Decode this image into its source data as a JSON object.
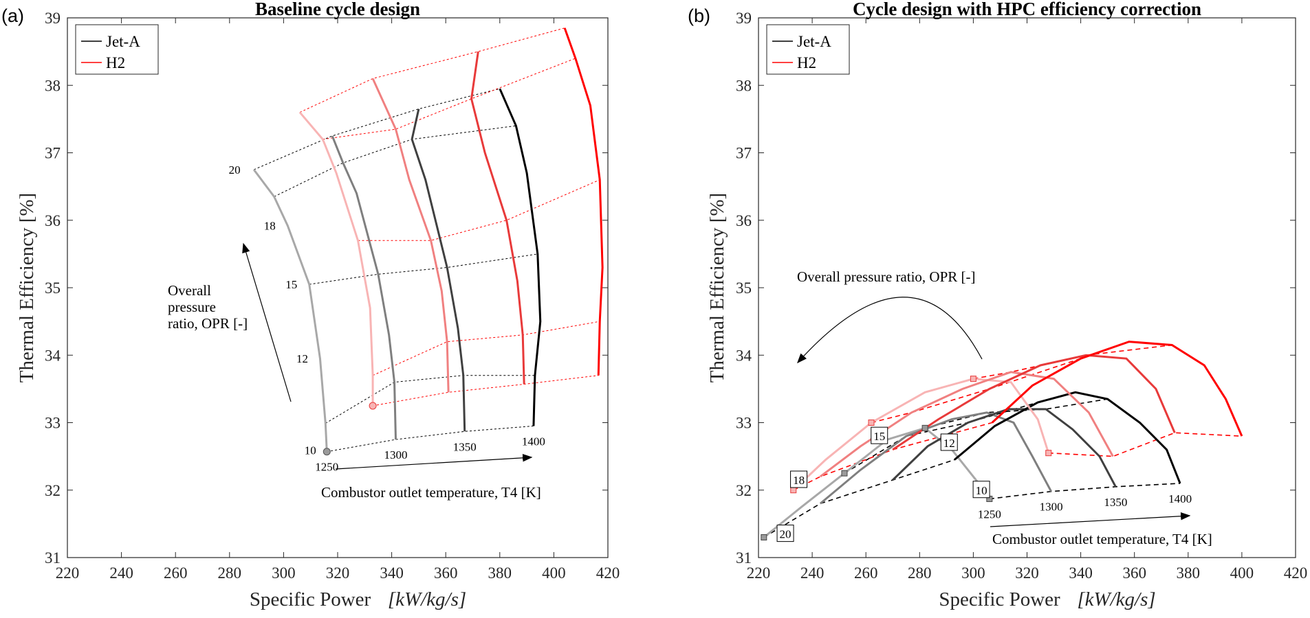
{
  "chart_data": [
    {
      "type": "line",
      "panel_label": "(a)",
      "title": "Baseline cycle design",
      "xlabel": "Specific Power",
      "xlabel_unit": "kW/kg/s",
      "ylabel": "Thermal Efficiency [%]",
      "xlim": [
        220,
        420
      ],
      "ylim": [
        31,
        39
      ],
      "xticks": [
        "220",
        "240",
        "260",
        "280",
        "300",
        "320",
        "340",
        "360",
        "380",
        "400",
        "420"
      ],
      "yticks": [
        "31",
        "32",
        "33",
        "34",
        "35",
        "36",
        "37",
        "38",
        "39"
      ],
      "legend": {
        "position": "top-left",
        "entries": [
          {
            "name": "Jet-A",
            "color": "#000000"
          },
          {
            "name": "H2",
            "color": "#ff0000"
          }
        ]
      },
      "opr_labels": [
        "10",
        "12",
        "15",
        "18",
        "20"
      ],
      "t4_labels": [
        "1250",
        "1300",
        "1350",
        "1400"
      ],
      "annotations": {
        "opr_arrow_text": [
          "Overall",
          "pressure",
          "ratio, OPR [-]"
        ],
        "t4_arrow_text": "Combustor outlet temperature, T4 [K]"
      },
      "series": [
        {
          "name": "Jet-A",
          "fuel": "Jet-A",
          "T4": 1250,
          "color": "#a8a8a8",
          "x": [
            316,
            315.5,
            313.5,
            309.5,
            301.5,
            296.5,
            289
          ],
          "y": [
            32.57,
            32.99,
            33.95,
            35.05,
            35.92,
            36.35,
            36.75
          ]
        },
        {
          "name": "Jet-A",
          "fuel": "Jet-A",
          "T4": 1300,
          "color": "#7f7f7f",
          "x": [
            341.5,
            341,
            339,
            335,
            327,
            322,
            318
          ],
          "y": [
            32.75,
            33.6,
            34.3,
            35.2,
            36.4,
            36.85,
            37.25
          ]
        },
        {
          "name": "Jet-A",
          "fuel": "Jet-A",
          "T4": 1350,
          "color": "#404040",
          "x": [
            367,
            366.5,
            364.5,
            360.5,
            352.5,
            347.5,
            350
          ],
          "y": [
            32.87,
            33.7,
            34.4,
            35.3,
            36.6,
            37.2,
            37.65
          ]
        },
        {
          "name": "Jet-A",
          "fuel": "Jet-A",
          "T4": 1400,
          "color": "#000000",
          "x": [
            392.5,
            393,
            395,
            394,
            390,
            386,
            380
          ],
          "y": [
            32.95,
            33.7,
            34.5,
            35.5,
            36.7,
            37.4,
            37.95
          ]
        },
        {
          "name": "H2",
          "fuel": "H2",
          "T4": 1250,
          "color": "#f8b4b4",
          "x": [
            333,
            333,
            332,
            327.5,
            319.5,
            314.5,
            306
          ],
          "y": [
            33.25,
            33.7,
            34.7,
            35.7,
            36.7,
            37.2,
            37.6
          ]
        },
        {
          "name": "H2",
          "fuel": "H2",
          "T4": 1300,
          "color": "#f08080",
          "x": [
            361,
            360.5,
            358.5,
            354.5,
            346.5,
            341.5,
            333
          ],
          "y": [
            33.45,
            34.2,
            34.95,
            35.7,
            36.6,
            37.35,
            38.1
          ]
        },
        {
          "name": "H2",
          "fuel": "H2",
          "T4": 1350,
          "color": "#e83a3a",
          "x": [
            389,
            388.5,
            386.5,
            382.5,
            374.5,
            369.5,
            372
          ],
          "y": [
            33.57,
            34.3,
            35.1,
            36.0,
            37.0,
            37.8,
            38.5
          ]
        },
        {
          "name": "H2",
          "fuel": "H2",
          "T4": 1400,
          "color": "#ff0000",
          "x": [
            416.5,
            417,
            418,
            417,
            413.5,
            408,
            404
          ],
          "y": [
            33.7,
            34.5,
            35.3,
            36.6,
            37.7,
            38.4,
            38.85
          ]
        }
      ]
    },
    {
      "type": "line",
      "panel_label": "(b)",
      "title": "Cycle design with HPC efficiency correction",
      "xlabel": "Specific Power",
      "xlabel_unit": "kW/kg/s",
      "ylabel": "Thermal Efficiency [%]",
      "xlim": [
        220,
        420
      ],
      "ylim": [
        31,
        39
      ],
      "xticks": [
        "220",
        "240",
        "260",
        "280",
        "300",
        "320",
        "340",
        "360",
        "380",
        "400",
        "420"
      ],
      "yticks": [
        "31",
        "32",
        "33",
        "34",
        "35",
        "36",
        "37",
        "38",
        "39"
      ],
      "legend": {
        "position": "top-left",
        "entries": [
          {
            "name": "Jet-A",
            "color": "#000000"
          },
          {
            "name": "H2",
            "color": "#ff0000"
          }
        ]
      },
      "opr_labels": [
        "10",
        "12",
        "15",
        "18",
        "20"
      ],
      "t4_labels": [
        "1250",
        "1300",
        "1350",
        "1400"
      ],
      "annotations": {
        "opr_arrow_text": "Overall pressure ratio, OPR [-]",
        "t4_arrow_text": "Combustor outlet temperature, T4 [K]"
      },
      "series": [
        {
          "name": "Jet-A",
          "fuel": "Jet-A",
          "T4": 1250,
          "color": "#a8a8a8",
          "x": [
            222,
            236,
            252,
            268,
            282,
            292,
            302,
            306
          ],
          "y": [
            31.3,
            31.75,
            32.25,
            32.75,
            32.92,
            32.6,
            32.1,
            31.87
          ]
        },
        {
          "name": "Jet-A",
          "fuel": "Jet-A",
          "T4": 1300,
          "color": "#7f7f7f",
          "x": [
            243,
            258,
            275,
            292,
            305,
            315,
            322,
            329
          ],
          "y": [
            31.8,
            32.3,
            32.8,
            33.05,
            33.15,
            33.0,
            32.5,
            31.98
          ]
        },
        {
          "name": "Jet-A",
          "fuel": "Jet-A",
          "T4": 1350,
          "color": "#404040",
          "x": [
            270,
            283,
            298,
            313,
            327,
            337,
            347,
            353
          ],
          "y": [
            32.15,
            32.65,
            33.0,
            33.2,
            33.2,
            32.9,
            32.5,
            32.05
          ]
        },
        {
          "name": "Jet-A",
          "fuel": "Jet-A",
          "T4": 1400,
          "color": "#000000",
          "x": [
            293,
            308,
            324,
            338,
            350,
            362,
            372,
            377
          ],
          "y": [
            32.45,
            32.95,
            33.3,
            33.45,
            33.35,
            33.0,
            32.6,
            32.1
          ]
        },
        {
          "name": "H2",
          "fuel": "H2",
          "T4": 1250,
          "color": "#f8b4b4",
          "x": [
            233,
            245,
            262,
            282,
            300,
            314,
            324,
            328
          ],
          "y": [
            32.0,
            32.45,
            33.0,
            33.45,
            33.65,
            33.6,
            33.05,
            32.55
          ]
        },
        {
          "name": "H2",
          "fuel": "H2",
          "T4": 1300,
          "color": "#f08080",
          "x": [
            243,
            258,
            277,
            296,
            314,
            330,
            343,
            352
          ],
          "y": [
            32.2,
            32.65,
            33.15,
            33.5,
            33.75,
            33.65,
            33.15,
            32.5
          ]
        },
        {
          "name": "H2",
          "fuel": "H2",
          "T4": 1350,
          "color": "#e83a3a",
          "x": [
            270,
            287,
            306,
            325,
            342,
            357,
            368,
            375
          ],
          "y": [
            32.6,
            33.05,
            33.5,
            33.85,
            34.0,
            33.95,
            33.5,
            32.85
          ]
        },
        {
          "name": "H2",
          "fuel": "H2",
          "T4": 1400,
          "color": "#ff0000",
          "x": [
            307,
            322,
            340,
            358,
            374,
            386,
            394,
            400
          ],
          "y": [
            33.0,
            33.55,
            33.95,
            34.2,
            34.15,
            33.85,
            33.35,
            32.8
          ]
        }
      ]
    }
  ]
}
